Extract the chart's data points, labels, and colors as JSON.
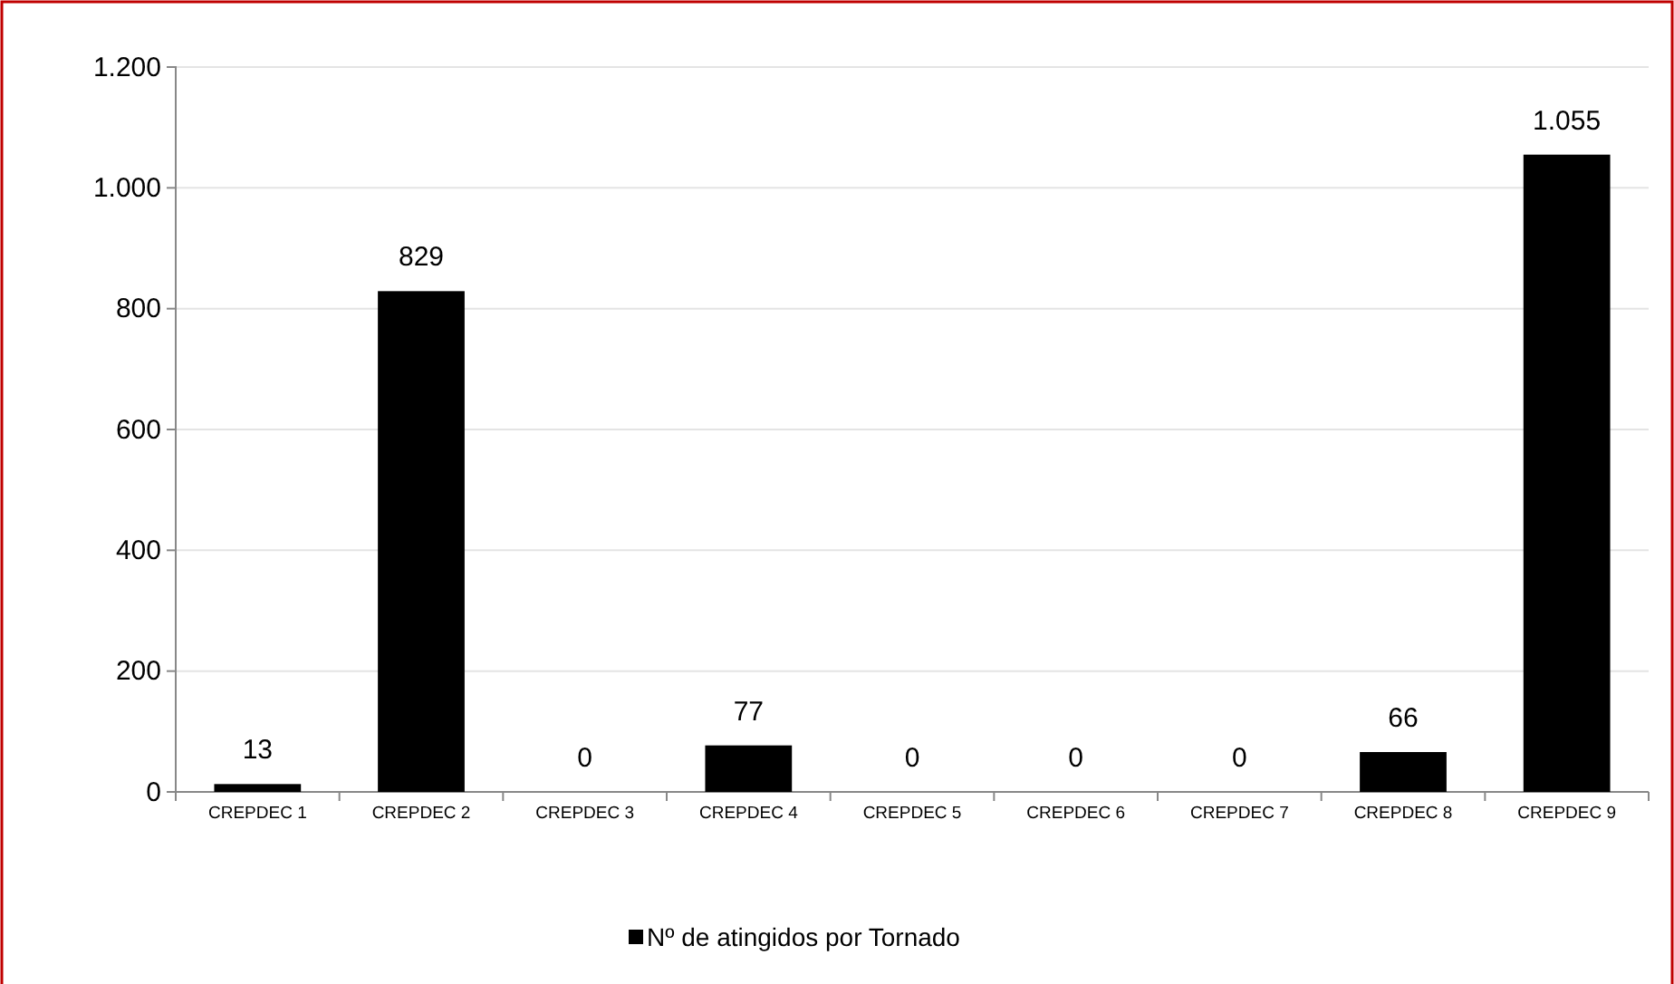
{
  "chart_data": {
    "type": "bar",
    "categories": [
      "CREPDEC 1",
      "CREPDEC 2",
      "CREPDEC 3",
      "CREPDEC 4",
      "CREPDEC 5",
      "CREPDEC 6",
      "CREPDEC 7",
      "CREPDEC 8",
      "CREPDEC 9"
    ],
    "series": [
      {
        "name": "Nº de atingidos por Tornado",
        "color": "#000000",
        "values": [
          13,
          829,
          0,
          77,
          0,
          0,
          0,
          66,
          1055
        ],
        "value_labels": [
          "13",
          "829",
          "0",
          "77",
          "0",
          "0",
          "0",
          "66",
          "1.055"
        ]
      }
    ],
    "ylim": [
      0,
      1200
    ],
    "yticks": [
      0,
      200,
      400,
      600,
      800,
      {
        "value": 1000,
        "label": "1.000"
      },
      {
        "value": 1200,
        "label": "1.200"
      }
    ],
    "grid": "y",
    "legend": "bottom"
  }
}
